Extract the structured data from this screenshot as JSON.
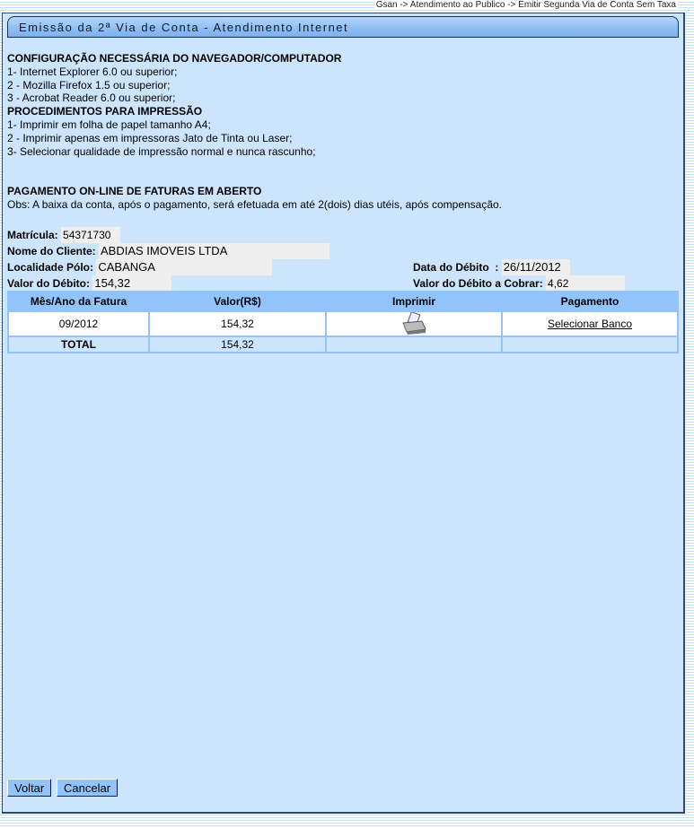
{
  "breadcrumb": "Gsan -> Atendimento ao Publico -> Emitir Segunda Via de Conta Sem Taxa",
  "title": "Emissão da 2ª Via de Conta - Atendimento Internet",
  "config": {
    "heading": "CONFIGURAÇÃO NECESSÁRIA DO NAVEGADOR/COMPUTADOR",
    "items": [
      "1- Internet Explorer 6.0 ou superior;",
      "2 - Mozilla Firefox 1.5 ou superior;",
      "3 - Acrobat Reader 6.0 ou superior;"
    ]
  },
  "print": {
    "heading": "PROCEDIMENTOS PARA IMPRESSÃO",
    "items": [
      "1- Imprimir em folha de papel tamanho A4;",
      "2 - Imprimir apenas em impressoras Jato de Tinta ou Laser;",
      "3- Selecionar qualidade de impressão normal e nunca rascunho;"
    ]
  },
  "payment": {
    "heading": "PAGAMENTO ON-LINE DE FATURAS EM ABERTO",
    "obs": "Obs: A baixa da conta, após o pagamento, será efetuada em até 2(dois) dias utéis, após compensação."
  },
  "info": {
    "matricula_label": "Matrícula:",
    "matricula": "54371730",
    "cliente_label": "Nome do Cliente:",
    "cliente": "ABDIAS IMOVEIS LTDA",
    "localidade_label": "Localidade Pólo:",
    "localidade": "CABANGA",
    "data_label": "Data do Débito  :",
    "data": "26/11/2012",
    "valor_label": "Valor do Débito:",
    "valor": "154,32",
    "cobrar_label": "Valor do Débito a Cobrar:",
    "cobrar": "4,62"
  },
  "table": {
    "headers": [
      "Mês/Ano da Fatura",
      "Valor(R$)",
      "Imprimir",
      "Pagamento"
    ],
    "row": {
      "mes": "09/2012",
      "valor": "154,32",
      "icon": "printer-icon",
      "pagamento": "Selecionar Banco"
    },
    "total": {
      "label": "TOTAL",
      "valor": "154,32"
    }
  },
  "buttons": {
    "voltar": "Voltar",
    "cancelar": "Cancelar"
  }
}
